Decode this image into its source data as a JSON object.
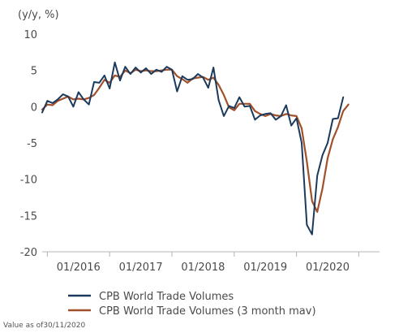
{
  "chart_data": {
    "type": "line",
    "ylabel": "(y/y, %)",
    "ylim": [
      -20,
      10
    ],
    "yticks": [
      10,
      5,
      0,
      -5,
      -10,
      -15,
      -20
    ],
    "xlim": [
      "2015-06",
      "2020-11"
    ],
    "xticks": [
      {
        "x": "2016-01",
        "label": "01/2016"
      },
      {
        "x": "2017-01",
        "label": "01/2017"
      },
      {
        "x": "2018-01",
        "label": "01/2018"
      },
      {
        "x": "2019-01",
        "label": "01/2019"
      },
      {
        "x": "2020-01",
        "label": "01/2020"
      }
    ],
    "x": [
      "2015-06",
      "2015-07",
      "2015-08",
      "2015-09",
      "2015-10",
      "2015-11",
      "2015-12",
      "2016-01",
      "2016-02",
      "2016-03",
      "2016-04",
      "2016-05",
      "2016-06",
      "2016-07",
      "2016-08",
      "2016-09",
      "2016-10",
      "2016-11",
      "2016-12",
      "2017-01",
      "2017-02",
      "2017-03",
      "2017-04",
      "2017-05",
      "2017-06",
      "2017-07",
      "2017-08",
      "2017-09",
      "2017-10",
      "2017-11",
      "2017-12",
      "2018-01",
      "2018-02",
      "2018-03",
      "2018-04",
      "2018-05",
      "2018-06",
      "2018-07",
      "2018-08",
      "2018-09",
      "2018-10",
      "2018-11",
      "2018-12",
      "2019-01",
      "2019-02",
      "2019-03",
      "2019-04",
      "2019-05",
      "2019-06",
      "2019-07",
      "2019-08",
      "2019-09",
      "2019-10",
      "2019-11",
      "2019-12",
      "2020-01",
      "2020-02",
      "2020-03",
      "2020-04",
      "2020-05",
      "2020-06",
      "2020-07",
      "2020-08",
      "2020-09",
      "2020-10",
      "2020-11"
    ],
    "series": [
      {
        "name": "CPB World Trade Volumes",
        "color": "#1b3a5c",
        "values": [
          -0.8,
          0.8,
          0.5,
          1.0,
          1.7,
          1.4,
          0.0,
          2.0,
          1.0,
          0.3,
          3.4,
          3.3,
          4.3,
          2.5,
          6.1,
          3.6,
          5.5,
          4.5,
          5.4,
          4.7,
          5.3,
          4.5,
          5.1,
          4.8,
          5.5,
          5.1,
          2.1,
          4.2,
          3.7,
          3.8,
          4.5,
          4.0,
          2.6,
          5.4,
          0.9,
          -1.3,
          0.1,
          -0.2,
          1.3,
          0.0,
          0.1,
          -1.8,
          -1.2,
          -1.0,
          -0.9,
          -1.8,
          -1.3,
          0.2,
          -2.6,
          -1.6,
          -5.0,
          -16.3,
          -17.6,
          -9.5,
          -6.7,
          -5.0,
          -1.7,
          -1.6,
          1.3,
          null,
          null,
          null,
          null,
          null,
          null,
          null
        ]
      },
      {
        "name": "CPB World Trade Volumes (3 month mav)",
        "color": "#a0502a",
        "values": [
          -0.4,
          0.3,
          0.2,
          0.8,
          1.1,
          1.4,
          1.0,
          1.1,
          1.0,
          1.2,
          1.6,
          2.6,
          3.7,
          3.3,
          4.3,
          4.1,
          5.0,
          4.6,
          5.1,
          4.9,
          5.0,
          4.9,
          4.9,
          5.0,
          5.1,
          5.1,
          4.2,
          3.8,
          3.3,
          3.9,
          4.0,
          4.1,
          3.7,
          4.0,
          3.0,
          1.6,
          -0.1,
          -0.5,
          0.4,
          0.4,
          0.4,
          -0.6,
          -1.0,
          -1.3,
          -1.0,
          -1.2,
          -1.3,
          -1.0,
          -1.2,
          -1.3,
          -3.0,
          -7.6,
          -13.0,
          -14.5,
          -11.3,
          -7.1,
          -4.5,
          -2.8,
          -0.6,
          0.3,
          null,
          null,
          null,
          null,
          null,
          null
        ]
      }
    ],
    "legend_position": "bottom-left",
    "grid": false
  },
  "footnote": "Value as of30/11/2020"
}
